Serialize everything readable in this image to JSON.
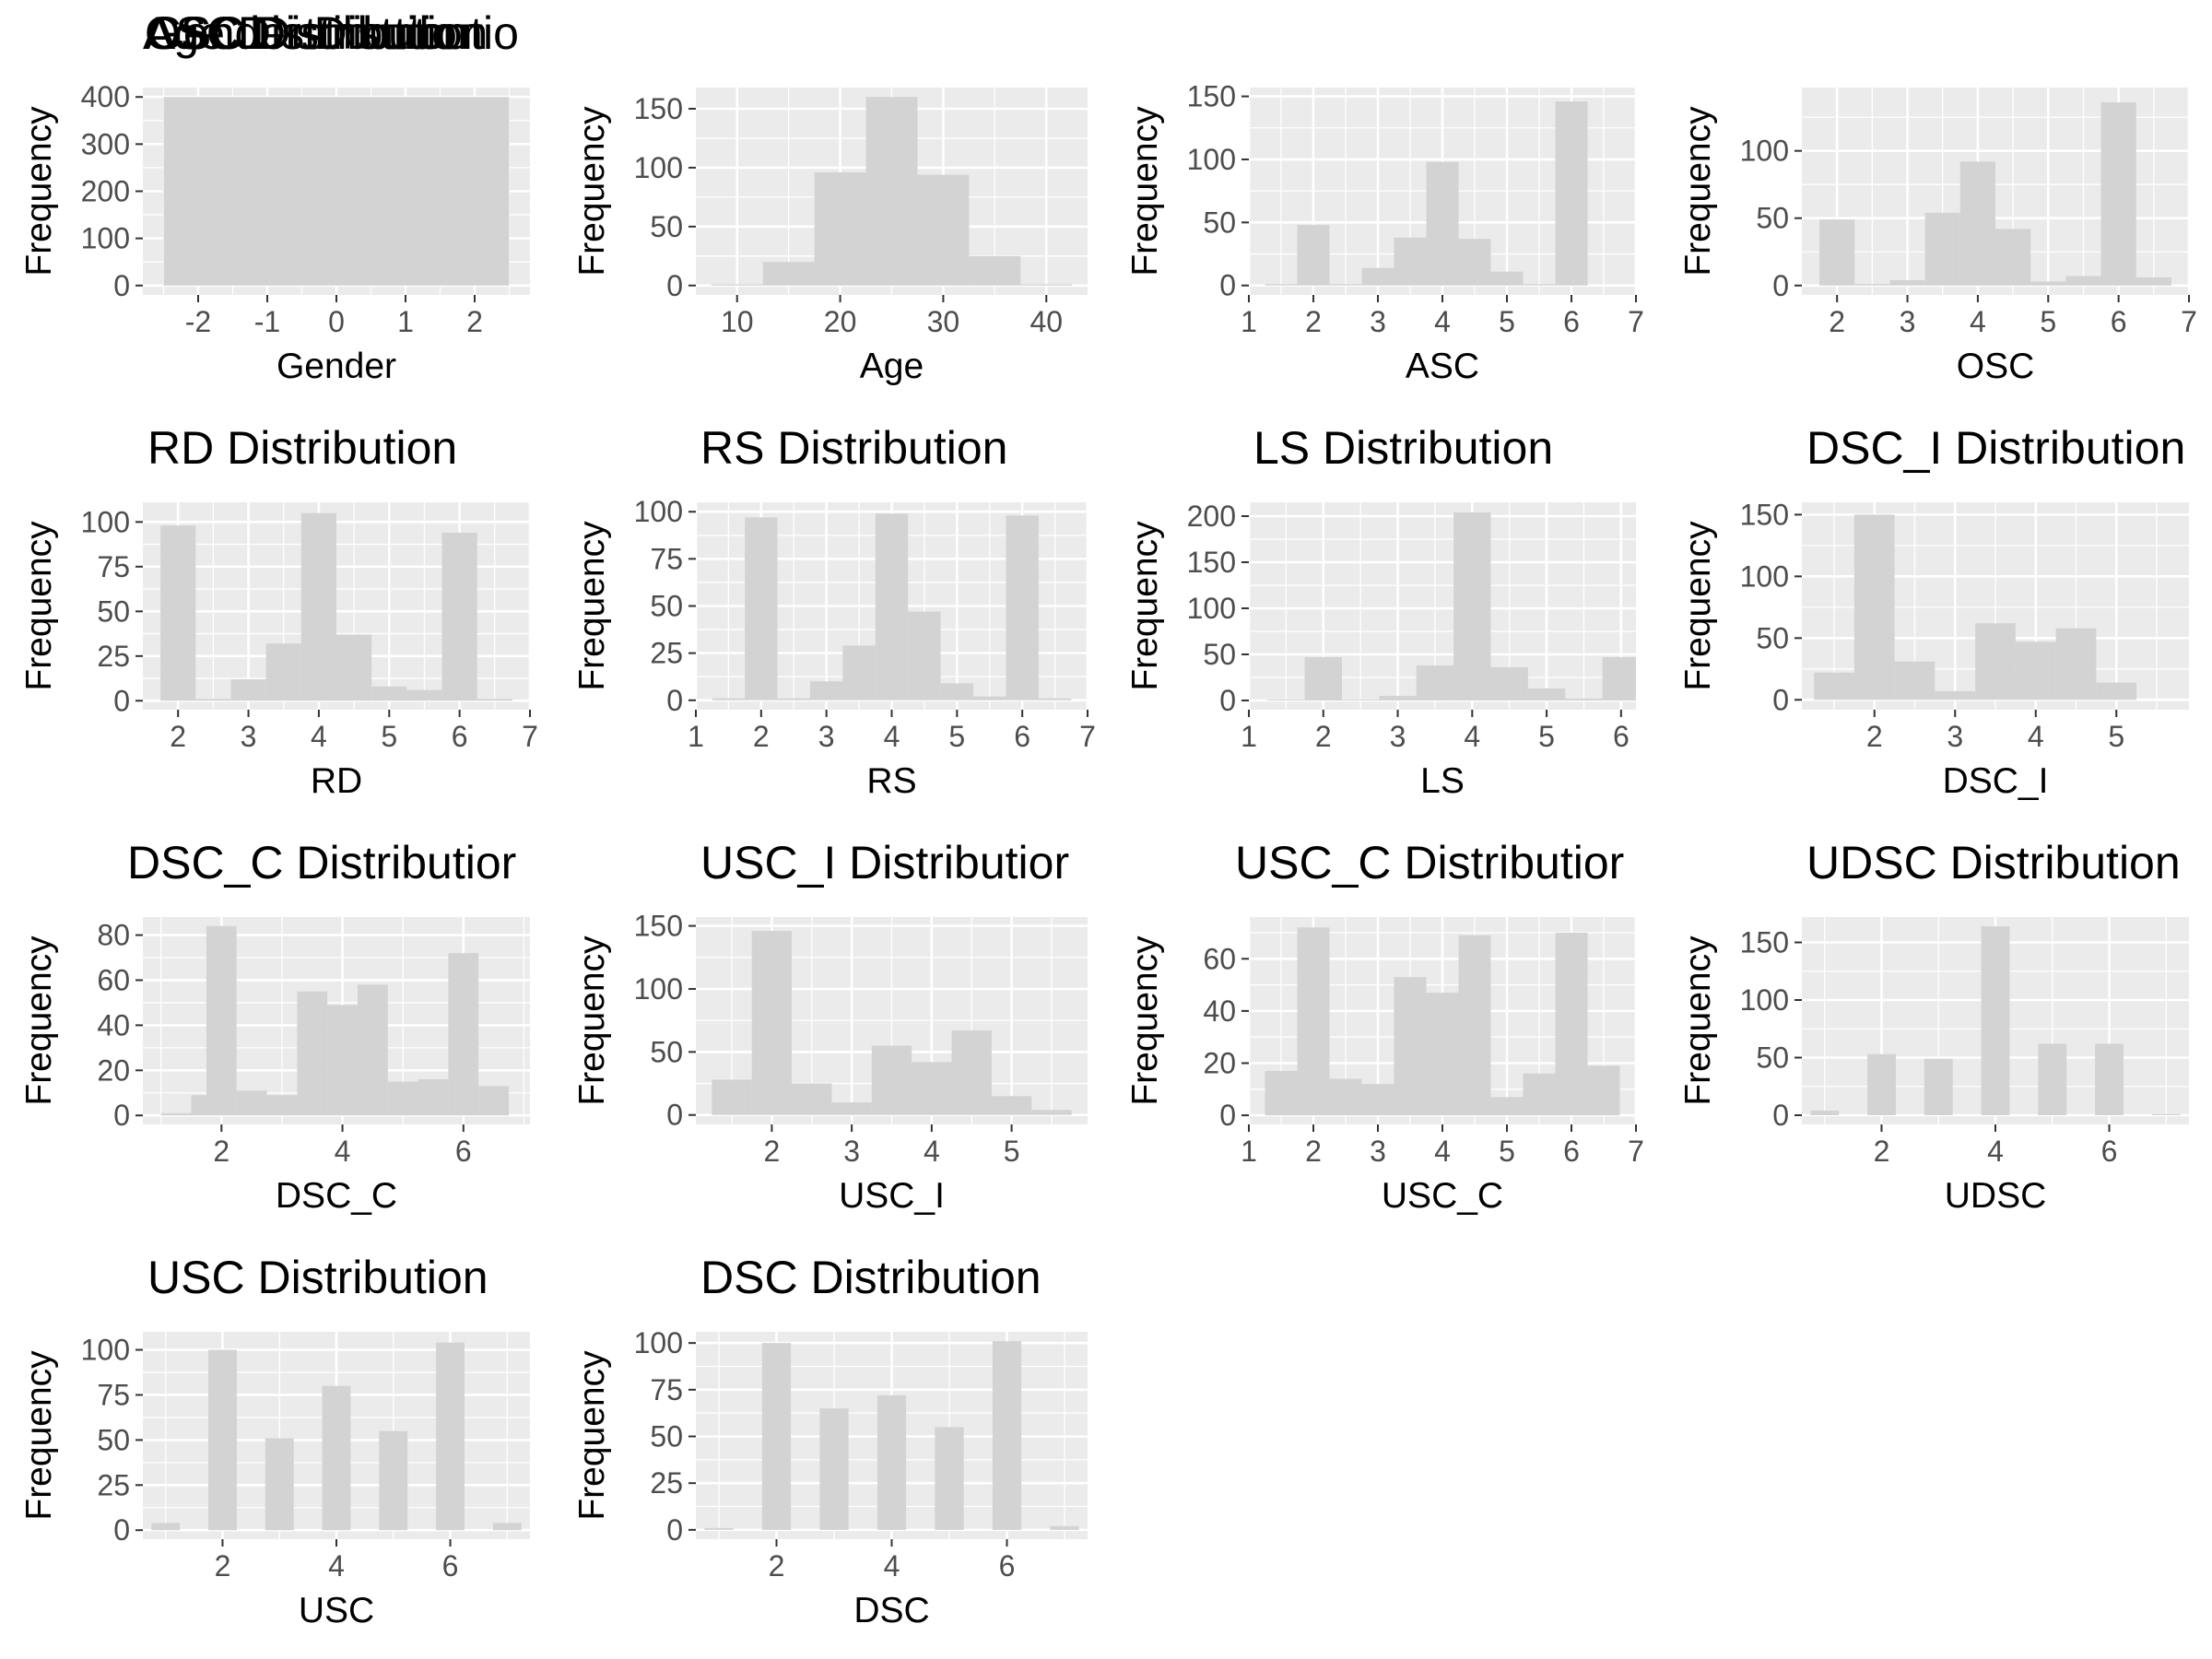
{
  "style": {
    "panel_bg": "#ebebeb",
    "grid_color": "#ffffff",
    "bar_fill": "#d3d3d3",
    "tick_color": "#4d4d4d"
  },
  "chart_data": [
    {
      "type": "bar",
      "title": "Gender Distributio",
      "xlabel": "Gender",
      "ylabel": "Frequency",
      "xlim": [
        -2.8,
        2.8
      ],
      "ylim": [
        -20,
        420
      ],
      "x_ticks": [
        -2,
        -1,
        0,
        1,
        2
      ],
      "x_tick_labels": [
        "-2",
        "-1",
        "0",
        "1",
        "2"
      ],
      "y_ticks": [
        0,
        100,
        200,
        300,
        400
      ],
      "y_tick_labels": [
        "0",
        "100",
        "200",
        "300",
        "400"
      ],
      "bins": [
        [
          -2.5,
          2.5,
          400
        ]
      ]
    },
    {
      "type": "bar",
      "title": "Age Distribution",
      "xlabel": "Age",
      "ylabel": "Frequency",
      "xlim": [
        6,
        44
      ],
      "ylim": [
        -8,
        168
      ],
      "x_ticks": [
        10,
        20,
        30,
        40
      ],
      "x_tick_labels": [
        "10",
        "20",
        "30",
        "40"
      ],
      "y_ticks": [
        0,
        50,
        100,
        150
      ],
      "y_tick_labels": [
        "0",
        "50",
        "100",
        "150"
      ],
      "bins": [
        [
          7.5,
          12.5,
          1
        ],
        [
          12.5,
          17.5,
          20
        ],
        [
          17.5,
          22.5,
          96
        ],
        [
          22.5,
          27.5,
          160
        ],
        [
          27.5,
          32.5,
          94
        ],
        [
          32.5,
          37.5,
          25
        ],
        [
          37.5,
          42.5,
          1
        ]
      ]
    },
    {
      "type": "bar",
      "title": "ASC Distribution",
      "xlabel": "ASC",
      "ylabel": "Frequency",
      "xlim": [
        1,
        7
      ],
      "ylim": [
        -7.5,
        157
      ],
      "x_ticks": [
        1,
        2,
        3,
        4,
        5,
        6,
        7
      ],
      "x_tick_labels": [
        "1",
        "2",
        "3",
        "4",
        "5",
        "6",
        "7"
      ],
      "y_ticks": [
        0,
        50,
        100,
        150
      ],
      "y_tick_labels": [
        "0",
        "50",
        "100",
        "150"
      ],
      "bins": [
        [
          1.25,
          1.75,
          1
        ],
        [
          1.75,
          2.25,
          48
        ],
        [
          2.25,
          2.75,
          1
        ],
        [
          2.75,
          3.25,
          14
        ],
        [
          3.25,
          3.75,
          38
        ],
        [
          3.75,
          4.25,
          98
        ],
        [
          4.25,
          4.75,
          37
        ],
        [
          4.75,
          5.25,
          11
        ],
        [
          5.25,
          5.75,
          1
        ],
        [
          5.75,
          6.25,
          146
        ]
      ]
    },
    {
      "type": "bar",
      "title": "OSC Distribution",
      "xlabel": "OSC",
      "ylabel": "Frequency",
      "xlim": [
        1.5,
        7
      ],
      "ylim": [
        -7,
        147
      ],
      "x_ticks": [
        2,
        3,
        4,
        5,
        6,
        7
      ],
      "x_tick_labels": [
        "2",
        "3",
        "4",
        "5",
        "6",
        "7"
      ],
      "y_ticks": [
        0,
        50,
        100
      ],
      "y_tick_labels": [
        "0",
        "50",
        "100"
      ],
      "bins": [
        [
          1.75,
          2.25,
          49
        ],
        [
          2.25,
          2.75,
          1
        ],
        [
          2.75,
          3.25,
          4
        ],
        [
          3.25,
          3.75,
          54
        ],
        [
          3.75,
          4.25,
          92
        ],
        [
          4.25,
          4.75,
          42
        ],
        [
          4.75,
          5.25,
          3
        ],
        [
          5.25,
          5.75,
          7
        ],
        [
          5.75,
          6.25,
          136
        ],
        [
          6.25,
          6.75,
          6
        ]
      ]
    },
    {
      "type": "bar",
      "title": "RD Distribution",
      "xlabel": "RD",
      "ylabel": "Frequency",
      "xlim": [
        1.5,
        7
      ],
      "ylim": [
        -5,
        111
      ],
      "x_ticks": [
        2,
        3,
        4,
        5,
        6,
        7
      ],
      "x_tick_labels": [
        "2",
        "3",
        "4",
        "5",
        "6",
        "7"
      ],
      "y_ticks": [
        0,
        25,
        50,
        75,
        100
      ],
      "y_tick_labels": [
        "0",
        "25",
        "50",
        "75",
        "100"
      ],
      "bins": [
        [
          1.75,
          2.25,
          98
        ],
        [
          2.25,
          2.75,
          1
        ],
        [
          2.75,
          3.25,
          12
        ],
        [
          3.25,
          3.75,
          32
        ],
        [
          3.75,
          4.25,
          105
        ],
        [
          4.25,
          4.75,
          37
        ],
        [
          4.75,
          5.25,
          8
        ],
        [
          5.25,
          5.75,
          6
        ],
        [
          5.75,
          6.25,
          94
        ],
        [
          6.25,
          6.75,
          1
        ]
      ]
    },
    {
      "type": "bar",
      "title": "RS Distribution",
      "xlabel": "RS",
      "ylabel": "Frequency",
      "xlim": [
        1,
        7
      ],
      "ylim": [
        -5,
        105
      ],
      "x_ticks": [
        1,
        2,
        3,
        4,
        5,
        6,
        7
      ],
      "x_tick_labels": [
        "1",
        "2",
        "3",
        "4",
        "5",
        "6",
        "7"
      ],
      "y_ticks": [
        0,
        25,
        50,
        75,
        100
      ],
      "y_tick_labels": [
        "0",
        "25",
        "50",
        "75",
        "100"
      ],
      "bins": [
        [
          1.25,
          1.75,
          1
        ],
        [
          1.75,
          2.25,
          97
        ],
        [
          2.25,
          2.75,
          1
        ],
        [
          2.75,
          3.25,
          10
        ],
        [
          3.25,
          3.75,
          29
        ],
        [
          3.75,
          4.25,
          99
        ],
        [
          4.25,
          4.75,
          47
        ],
        [
          4.75,
          5.25,
          9
        ],
        [
          5.25,
          5.75,
          2
        ],
        [
          5.75,
          6.25,
          98
        ],
        [
          6.25,
          6.75,
          1
        ]
      ]
    },
    {
      "type": "bar",
      "title": "LS Distribution",
      "xlabel": "LS",
      "ylabel": "Frequency",
      "xlim": [
        1,
        6.2
      ],
      "ylim": [
        -10,
        215
      ],
      "x_ticks": [
        1,
        2,
        3,
        4,
        5,
        6
      ],
      "x_tick_labels": [
        "1",
        "2",
        "3",
        "4",
        "5",
        "6"
      ],
      "y_ticks": [
        0,
        50,
        100,
        150,
        200
      ],
      "y_tick_labels": [
        "0",
        "50",
        "100",
        "150",
        "200"
      ],
      "bins": [
        [
          1.25,
          1.75,
          1
        ],
        [
          1.75,
          2.25,
          47
        ],
        [
          2.25,
          2.75,
          1
        ],
        [
          2.75,
          3.25,
          5
        ],
        [
          3.25,
          3.75,
          38
        ],
        [
          3.75,
          4.25,
          204
        ],
        [
          4.25,
          4.75,
          36
        ],
        [
          4.75,
          5.25,
          13
        ],
        [
          5.25,
          5.75,
          2
        ],
        [
          5.75,
          6.25,
          47
        ]
      ]
    },
    {
      "type": "bar",
      "title": "DSC_I Distribution",
      "xlabel": "DSC_I",
      "ylabel": "Frequency",
      "xlim": [
        1.1,
        5.9
      ],
      "ylim": [
        -8,
        160
      ],
      "x_ticks": [
        2,
        3,
        4,
        5
      ],
      "x_tick_labels": [
        "2",
        "3",
        "4",
        "5"
      ],
      "y_ticks": [
        0,
        50,
        100,
        150
      ],
      "y_tick_labels": [
        "0",
        "50",
        "100",
        "150"
      ],
      "bins": [
        [
          1.25,
          1.75,
          22
        ],
        [
          1.75,
          2.25,
          150
        ],
        [
          2.25,
          2.75,
          31
        ],
        [
          2.75,
          3.25,
          7
        ],
        [
          3.25,
          3.75,
          62
        ],
        [
          3.75,
          4.25,
          47
        ],
        [
          4.25,
          4.75,
          58
        ],
        [
          4.75,
          5.25,
          14
        ]
      ]
    },
    {
      "type": "bar",
      "title": "DSC_C Distributior",
      "xlabel": "DSC_C",
      "ylabel": "Frequency",
      "xlim": [
        0.7,
        7.1
      ],
      "ylim": [
        -4,
        88
      ],
      "x_ticks": [
        2,
        4,
        6
      ],
      "x_tick_labels": [
        "2",
        "4",
        "6"
      ],
      "y_ticks": [
        0,
        20,
        40,
        60,
        80
      ],
      "y_tick_labels": [
        "0",
        "20",
        "40",
        "60",
        "80"
      ],
      "bins": [
        [
          1.0,
          1.5,
          1
        ],
        [
          1.5,
          1.75,
          9
        ],
        [
          1.75,
          2.25,
          84
        ],
        [
          2.25,
          2.75,
          11
        ],
        [
          2.75,
          3.25,
          9
        ],
        [
          3.25,
          3.75,
          55
        ],
        [
          3.75,
          4.25,
          49
        ],
        [
          4.25,
          4.75,
          58
        ],
        [
          4.75,
          5.25,
          15
        ],
        [
          5.25,
          5.75,
          16
        ],
        [
          5.75,
          6.25,
          72
        ],
        [
          6.25,
          6.75,
          13
        ]
      ]
    },
    {
      "type": "bar",
      "title": "USC_I Distributior",
      "xlabel": "USC_I",
      "ylabel": "Frequency",
      "xlim": [
        1.05,
        5.95
      ],
      "ylim": [
        -7.5,
        157
      ],
      "x_ticks": [
        2,
        3,
        4,
        5
      ],
      "x_tick_labels": [
        "2",
        "3",
        "4",
        "5"
      ],
      "y_ticks": [
        0,
        50,
        100,
        150
      ],
      "y_tick_labels": [
        "0",
        "50",
        "100",
        "150"
      ],
      "bins": [
        [
          1.25,
          1.75,
          28
        ],
        [
          1.75,
          2.25,
          146
        ],
        [
          2.25,
          2.75,
          25
        ],
        [
          2.75,
          3.25,
          10
        ],
        [
          3.25,
          3.75,
          55
        ],
        [
          3.75,
          4.25,
          42
        ],
        [
          4.25,
          4.75,
          67
        ],
        [
          4.75,
          5.25,
          15
        ],
        [
          5.25,
          5.75,
          4
        ]
      ]
    },
    {
      "type": "bar",
      "title": "USC_C Distributior",
      "xlabel": "USC_C",
      "ylabel": "Frequency",
      "xlim": [
        1,
        7
      ],
      "ylim": [
        -3.5,
        76
      ],
      "x_ticks": [
        1,
        2,
        3,
        4,
        5,
        6,
        7
      ],
      "x_tick_labels": [
        "1",
        "2",
        "3",
        "4",
        "5",
        "6",
        "7"
      ],
      "y_ticks": [
        0,
        20,
        40,
        60
      ],
      "y_tick_labels": [
        "0",
        "20",
        "40",
        "60"
      ],
      "bins": [
        [
          1.25,
          1.75,
          17
        ],
        [
          1.75,
          2.25,
          72
        ],
        [
          2.25,
          2.75,
          14
        ],
        [
          2.75,
          3.25,
          12
        ],
        [
          3.25,
          3.75,
          53
        ],
        [
          3.75,
          4.25,
          47
        ],
        [
          4.25,
          4.75,
          69
        ],
        [
          4.75,
          5.25,
          7
        ],
        [
          5.25,
          5.75,
          16
        ],
        [
          5.75,
          6.25,
          70
        ],
        [
          6.25,
          6.75,
          19
        ]
      ]
    },
    {
      "type": "bar",
      "title": "UDSC Distribution",
      "xlabel": "UDSC",
      "ylabel": "Frequency",
      "xlim": [
        0.6,
        7.4
      ],
      "ylim": [
        -8,
        172
      ],
      "x_ticks": [
        2,
        4,
        6
      ],
      "x_tick_labels": [
        "2",
        "4",
        "6"
      ],
      "y_ticks": [
        0,
        50,
        100,
        150
      ],
      "y_tick_labels": [
        "0",
        "50",
        "100",
        "150"
      ],
      "bins": [
        [
          0.75,
          1.25,
          4
        ],
        [
          1.75,
          2.25,
          53
        ],
        [
          2.75,
          3.25,
          49
        ],
        [
          3.75,
          4.25,
          164
        ],
        [
          4.75,
          5.25,
          62
        ],
        [
          5.75,
          6.25,
          62
        ],
        [
          6.75,
          7.25,
          1
        ]
      ]
    },
    {
      "type": "bar",
      "title": "USC Distribution",
      "xlabel": "USC",
      "ylabel": "Frequency",
      "xlim": [
        0.6,
        7.4
      ],
      "ylim": [
        -5,
        110
      ],
      "x_ticks": [
        2,
        4,
        6
      ],
      "x_tick_labels": [
        "2",
        "4",
        "6"
      ],
      "y_ticks": [
        0,
        25,
        50,
        75,
        100
      ],
      "y_tick_labels": [
        "0",
        "25",
        "50",
        "75",
        "100"
      ],
      "bins": [
        [
          0.75,
          1.25,
          4
        ],
        [
          1.75,
          2.25,
          100
        ],
        [
          2.75,
          3.25,
          51
        ],
        [
          3.75,
          4.25,
          80
        ],
        [
          4.75,
          5.25,
          55
        ],
        [
          5.75,
          6.25,
          104
        ],
        [
          6.75,
          7.25,
          4
        ]
      ]
    },
    {
      "type": "bar",
      "title": "DSC Distribution",
      "xlabel": "DSC",
      "ylabel": "Frequency",
      "xlim": [
        0.6,
        7.4
      ],
      "ylim": [
        -5,
        106
      ],
      "x_ticks": [
        2,
        4,
        6
      ],
      "x_tick_labels": [
        "2",
        "4",
        "6"
      ],
      "y_ticks": [
        0,
        25,
        50,
        75,
        100
      ],
      "y_tick_labels": [
        "0",
        "25",
        "50",
        "75",
        "100"
      ],
      "bins": [
        [
          0.75,
          1.25,
          1
        ],
        [
          1.75,
          2.25,
          100
        ],
        [
          2.75,
          3.25,
          65
        ],
        [
          3.75,
          4.25,
          72
        ],
        [
          4.75,
          5.25,
          55
        ],
        [
          5.75,
          6.25,
          101
        ],
        [
          6.75,
          7.25,
          2
        ]
      ]
    }
  ]
}
